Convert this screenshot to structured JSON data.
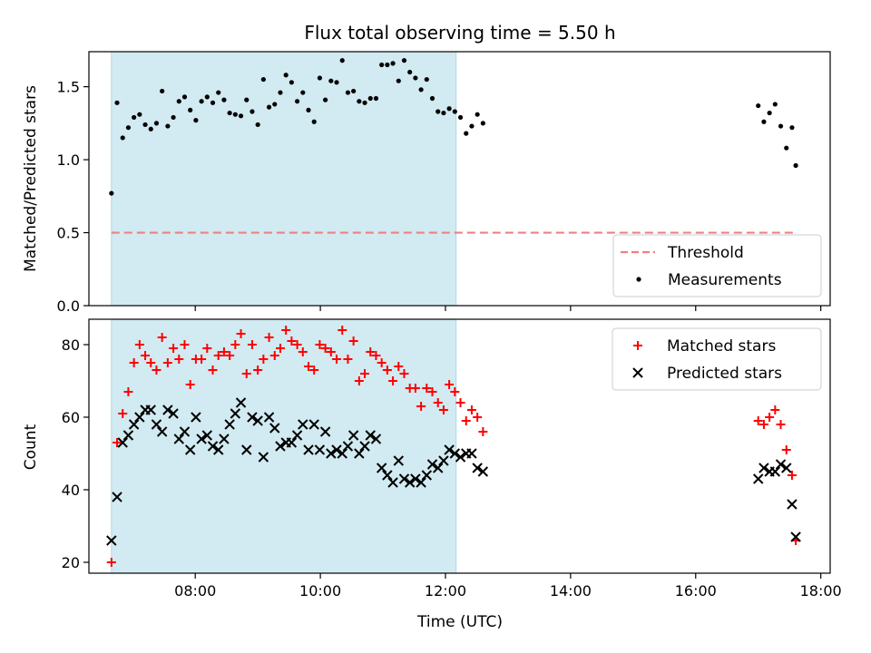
{
  "chart_data": {
    "title": "Flux total observing time = 5.50 h",
    "xlabel": "Time (UTC)",
    "x_unit": "hours UTC",
    "xlim": [
      6.3,
      18.15
    ],
    "x_ticks": [
      8,
      10,
      12,
      14,
      16,
      18
    ],
    "x_tick_labels": [
      "08:00",
      "10:00",
      "12:00",
      "14:00",
      "16:00",
      "18:00"
    ],
    "shaded_interval": {
      "x": [
        6.66,
        12.17
      ],
      "color": "#add8e6"
    },
    "panels": [
      {
        "type": "scatter",
        "ylabel": "Matched/Predicted stars",
        "ylim": [
          0.0,
          1.74
        ],
        "y_ticks": [
          0.0,
          0.5,
          1.0,
          1.5
        ],
        "y_tick_labels": [
          "0.0",
          "0.5",
          "1.0",
          "1.5"
        ],
        "legend": "bottom-right",
        "series": [
          {
            "name": "Threshold",
            "kind": "dashed-line",
            "color": "#f08080",
            "points": [
              [
                6.66,
                0.5
              ],
              [
                17.6,
                0.5
              ]
            ]
          },
          {
            "name": "Measurements",
            "kind": "dot",
            "color": "#000000",
            "points": [
              [
                6.66,
                0.77
              ],
              [
                6.75,
                1.39
              ],
              [
                6.84,
                1.15
              ],
              [
                6.93,
                1.22
              ],
              [
                7.02,
                1.29
              ],
              [
                7.11,
                1.31
              ],
              [
                7.2,
                1.24
              ],
              [
                7.29,
                1.21
              ],
              [
                7.38,
                1.25
              ],
              [
                7.47,
                1.47
              ],
              [
                7.56,
                1.23
              ],
              [
                7.65,
                1.29
              ],
              [
                7.74,
                1.4
              ],
              [
                7.83,
                1.43
              ],
              [
                7.92,
                1.34
              ],
              [
                8.01,
                1.27
              ],
              [
                8.1,
                1.4
              ],
              [
                8.19,
                1.43
              ],
              [
                8.28,
                1.39
              ],
              [
                8.37,
                1.46
              ],
              [
                8.46,
                1.41
              ],
              [
                8.55,
                1.32
              ],
              [
                8.64,
                1.31
              ],
              [
                8.73,
                1.3
              ],
              [
                8.82,
                1.41
              ],
              [
                8.91,
                1.33
              ],
              [
                9.0,
                1.24
              ],
              [
                9.09,
                1.55
              ],
              [
                9.18,
                1.36
              ],
              [
                9.27,
                1.38
              ],
              [
                9.36,
                1.46
              ],
              [
                9.45,
                1.58
              ],
              [
                9.54,
                1.53
              ],
              [
                9.63,
                1.4
              ],
              [
                9.72,
                1.46
              ],
              [
                9.81,
                1.34
              ],
              [
                9.9,
                1.26
              ],
              [
                9.99,
                1.56
              ],
              [
                10.08,
                1.41
              ],
              [
                10.17,
                1.54
              ],
              [
                10.26,
                1.53
              ],
              [
                10.35,
                1.68
              ],
              [
                10.44,
                1.46
              ],
              [
                10.53,
                1.47
              ],
              [
                10.62,
                1.4
              ],
              [
                10.71,
                1.39
              ],
              [
                10.8,
                1.42
              ],
              [
                10.89,
                1.42
              ],
              [
                10.98,
                1.65
              ],
              [
                11.07,
                1.65
              ],
              [
                11.16,
                1.66
              ],
              [
                11.25,
                1.54
              ],
              [
                11.34,
                1.68
              ],
              [
                11.43,
                1.6
              ],
              [
                11.52,
                1.56
              ],
              [
                11.61,
                1.48
              ],
              [
                11.7,
                1.55
              ],
              [
                11.79,
                1.42
              ],
              [
                11.88,
                1.33
              ],
              [
                11.97,
                1.32
              ],
              [
                12.06,
                1.35
              ],
              [
                12.15,
                1.33
              ],
              [
                12.24,
                1.29
              ],
              [
                12.33,
                1.18
              ],
              [
                12.42,
                1.23
              ],
              [
                12.51,
                1.31
              ],
              [
                12.6,
                1.25
              ],
              [
                17.0,
                1.37
              ],
              [
                17.09,
                1.26
              ],
              [
                17.18,
                1.32
              ],
              [
                17.27,
                1.38
              ],
              [
                17.36,
                1.23
              ],
              [
                17.45,
                1.08
              ],
              [
                17.54,
                1.22
              ],
              [
                17.6,
                0.96
              ]
            ]
          }
        ]
      },
      {
        "type": "scatter",
        "ylabel": "Count",
        "ylim": [
          17,
          87
        ],
        "y_ticks": [
          20,
          40,
          60,
          80
        ],
        "y_tick_labels": [
          "20",
          "40",
          "60",
          "80"
        ],
        "legend": "top-right",
        "series": [
          {
            "name": "Matched stars",
            "kind": "plus",
            "color": "#ff0000",
            "points": [
              [
                6.66,
                20
              ],
              [
                6.75,
                53
              ],
              [
                6.84,
                61
              ],
              [
                6.93,
                67
              ],
              [
                7.02,
                75
              ],
              [
                7.11,
                80
              ],
              [
                7.2,
                77
              ],
              [
                7.29,
                75
              ],
              [
                7.38,
                73
              ],
              [
                7.47,
                82
              ],
              [
                7.56,
                75
              ],
              [
                7.65,
                79
              ],
              [
                7.74,
                76
              ],
              [
                7.83,
                80
              ],
              [
                7.92,
                69
              ],
              [
                8.01,
                76
              ],
              [
                8.1,
                76
              ],
              [
                8.19,
                79
              ],
              [
                8.28,
                73
              ],
              [
                8.37,
                77
              ],
              [
                8.46,
                78
              ],
              [
                8.55,
                77
              ],
              [
                8.64,
                80
              ],
              [
                8.73,
                83
              ],
              [
                8.82,
                72
              ],
              [
                8.91,
                80
              ],
              [
                9.0,
                73
              ],
              [
                9.09,
                76
              ],
              [
                9.18,
                82
              ],
              [
                9.27,
                77
              ],
              [
                9.36,
                79
              ],
              [
                9.45,
                84
              ],
              [
                9.54,
                81
              ],
              [
                9.63,
                80
              ],
              [
                9.72,
                78
              ],
              [
                9.81,
                74
              ],
              [
                9.9,
                73
              ],
              [
                9.99,
                80
              ],
              [
                10.08,
                79
              ],
              [
                10.17,
                78
              ],
              [
                10.26,
                76
              ],
              [
                10.35,
                84
              ],
              [
                10.44,
                76
              ],
              [
                10.53,
                81
              ],
              [
                10.62,
                70
              ],
              [
                10.71,
                72
              ],
              [
                10.8,
                78
              ],
              [
                10.89,
                77
              ],
              [
                10.98,
                75
              ],
              [
                11.07,
                73
              ],
              [
                11.16,
                70
              ],
              [
                11.25,
                74
              ],
              [
                11.34,
                72
              ],
              [
                11.43,
                68
              ],
              [
                11.52,
                68
              ],
              [
                11.61,
                63
              ],
              [
                11.7,
                68
              ],
              [
                11.79,
                67
              ],
              [
                11.88,
                64
              ],
              [
                11.97,
                62
              ],
              [
                12.06,
                69
              ],
              [
                12.15,
                67
              ],
              [
                12.24,
                64
              ],
              [
                12.33,
                59
              ],
              [
                12.42,
                62
              ],
              [
                12.51,
                60
              ],
              [
                12.6,
                56
              ],
              [
                17.0,
                59
              ],
              [
                17.09,
                58
              ],
              [
                17.18,
                60
              ],
              [
                17.27,
                62
              ],
              [
                17.36,
                58
              ],
              [
                17.45,
                51
              ],
              [
                17.54,
                44
              ],
              [
                17.6,
                26
              ]
            ]
          },
          {
            "name": "Predicted stars",
            "kind": "x",
            "color": "#000000",
            "points": [
              [
                6.66,
                26
              ],
              [
                6.75,
                38
              ],
              [
                6.84,
                53
              ],
              [
                6.93,
                55
              ],
              [
                7.02,
                58
              ],
              [
                7.11,
                60
              ],
              [
                7.2,
                62
              ],
              [
                7.29,
                62
              ],
              [
                7.38,
                58
              ],
              [
                7.47,
                56
              ],
              [
                7.56,
                62
              ],
              [
                7.65,
                61
              ],
              [
                7.74,
                54
              ],
              [
                7.83,
                56
              ],
              [
                7.92,
                51
              ],
              [
                8.01,
                60
              ],
              [
                8.1,
                54
              ],
              [
                8.19,
                55
              ],
              [
                8.28,
                52
              ],
              [
                8.37,
                51
              ],
              [
                8.46,
                54
              ],
              [
                8.55,
                58
              ],
              [
                8.64,
                61
              ],
              [
                8.73,
                64
              ],
              [
                8.82,
                51
              ],
              [
                8.91,
                60
              ],
              [
                9.0,
                59
              ],
              [
                9.09,
                49
              ],
              [
                9.18,
                60
              ],
              [
                9.27,
                57
              ],
              [
                9.36,
                52
              ],
              [
                9.45,
                53
              ],
              [
                9.54,
                53
              ],
              [
                9.63,
                55
              ],
              [
                9.72,
                58
              ],
              [
                9.81,
                51
              ],
              [
                9.9,
                58
              ],
              [
                9.99,
                51
              ],
              [
                10.08,
                56
              ],
              [
                10.17,
                50
              ],
              [
                10.26,
                51
              ],
              [
                10.35,
                50
              ],
              [
                10.44,
                52
              ],
              [
                10.53,
                55
              ],
              [
                10.62,
                50
              ],
              [
                10.71,
                52
              ],
              [
                10.8,
                55
              ],
              [
                10.89,
                54
              ],
              [
                10.98,
                46
              ],
              [
                11.07,
                44
              ],
              [
                11.16,
                42
              ],
              [
                11.25,
                48
              ],
              [
                11.34,
                43
              ],
              [
                11.43,
                42
              ],
              [
                11.52,
                43
              ],
              [
                11.61,
                42
              ],
              [
                11.7,
                44
              ],
              [
                11.79,
                47
              ],
              [
                11.88,
                46
              ],
              [
                11.97,
                48
              ],
              [
                12.06,
                51
              ],
              [
                12.15,
                50
              ],
              [
                12.24,
                49
              ],
              [
                12.33,
                50
              ],
              [
                12.42,
                50
              ],
              [
                12.51,
                46
              ],
              [
                12.6,
                45
              ],
              [
                17.0,
                43
              ],
              [
                17.09,
                46
              ],
              [
                17.18,
                45
              ],
              [
                17.27,
                45
              ],
              [
                17.36,
                47
              ],
              [
                17.45,
                46
              ],
              [
                17.54,
                36
              ],
              [
                17.6,
                27
              ]
            ]
          }
        ]
      }
    ]
  }
}
